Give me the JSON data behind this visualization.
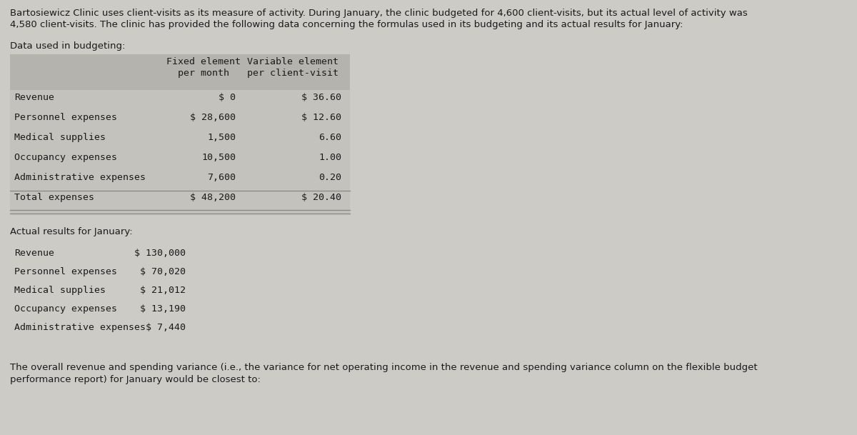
{
  "background_color": "#cccbc6",
  "intro_line1": "Bartosiewicz Clinic uses client-visits as its measure of activity. During January, the clinic budgeted for 4,600 client-visits, but its actual level of activity was",
  "intro_line2": "4,580 client-visits. The clinic has provided the following data concerning the formulas used in its budgeting and its actual results for January:",
  "data_used_label": "Data used in budgeting:",
  "table_header_col1a": "Fixed element",
  "table_header_col1b": "per month",
  "table_header_col2a": "Variable element",
  "table_header_col2b": "per client-visit",
  "table_rows": [
    {
      "label": "Revenue",
      "fixed": "$ 0",
      "variable": "$ 36.60"
    },
    {
      "label": "Personnel expenses",
      "fixed": "$ 28,600",
      "variable": "$ 12.60"
    },
    {
      "label": "Medical supplies",
      "fixed": "1,500",
      "variable": "6.60"
    },
    {
      "label": "Occupancy expenses",
      "fixed": "10,500",
      "variable": "1.00"
    },
    {
      "label": "Administrative expenses",
      "fixed": "7,600",
      "variable": "0.20"
    },
    {
      "label": "Total expenses",
      "fixed": "$ 48,200",
      "variable": "$ 20.40"
    }
  ],
  "actual_label": "Actual results for January:",
  "actual_rows": [
    {
      "label": "Revenue",
      "value": "$ 130,000"
    },
    {
      "label": "Personnel expenses",
      "value": "$ 70,020"
    },
    {
      "label": "Medical supplies",
      "value": "$ 21,012"
    },
    {
      "label": "Occupancy expenses",
      "value": "$ 13,190"
    },
    {
      "label": "Administrative expenses",
      "value": "$ 7,440"
    }
  ],
  "footer_line1": "The overall revenue and spending variance (i.e., the variance for net operating income in the revenue and spending variance column on the flexible budget",
  "footer_line2": "performance report) for January would be closest to:",
  "table_bg_color": "#c4c2bc",
  "header_bg_color": "#b5b3ad",
  "font_color": "#1a1a1a",
  "line_color": "#888880"
}
